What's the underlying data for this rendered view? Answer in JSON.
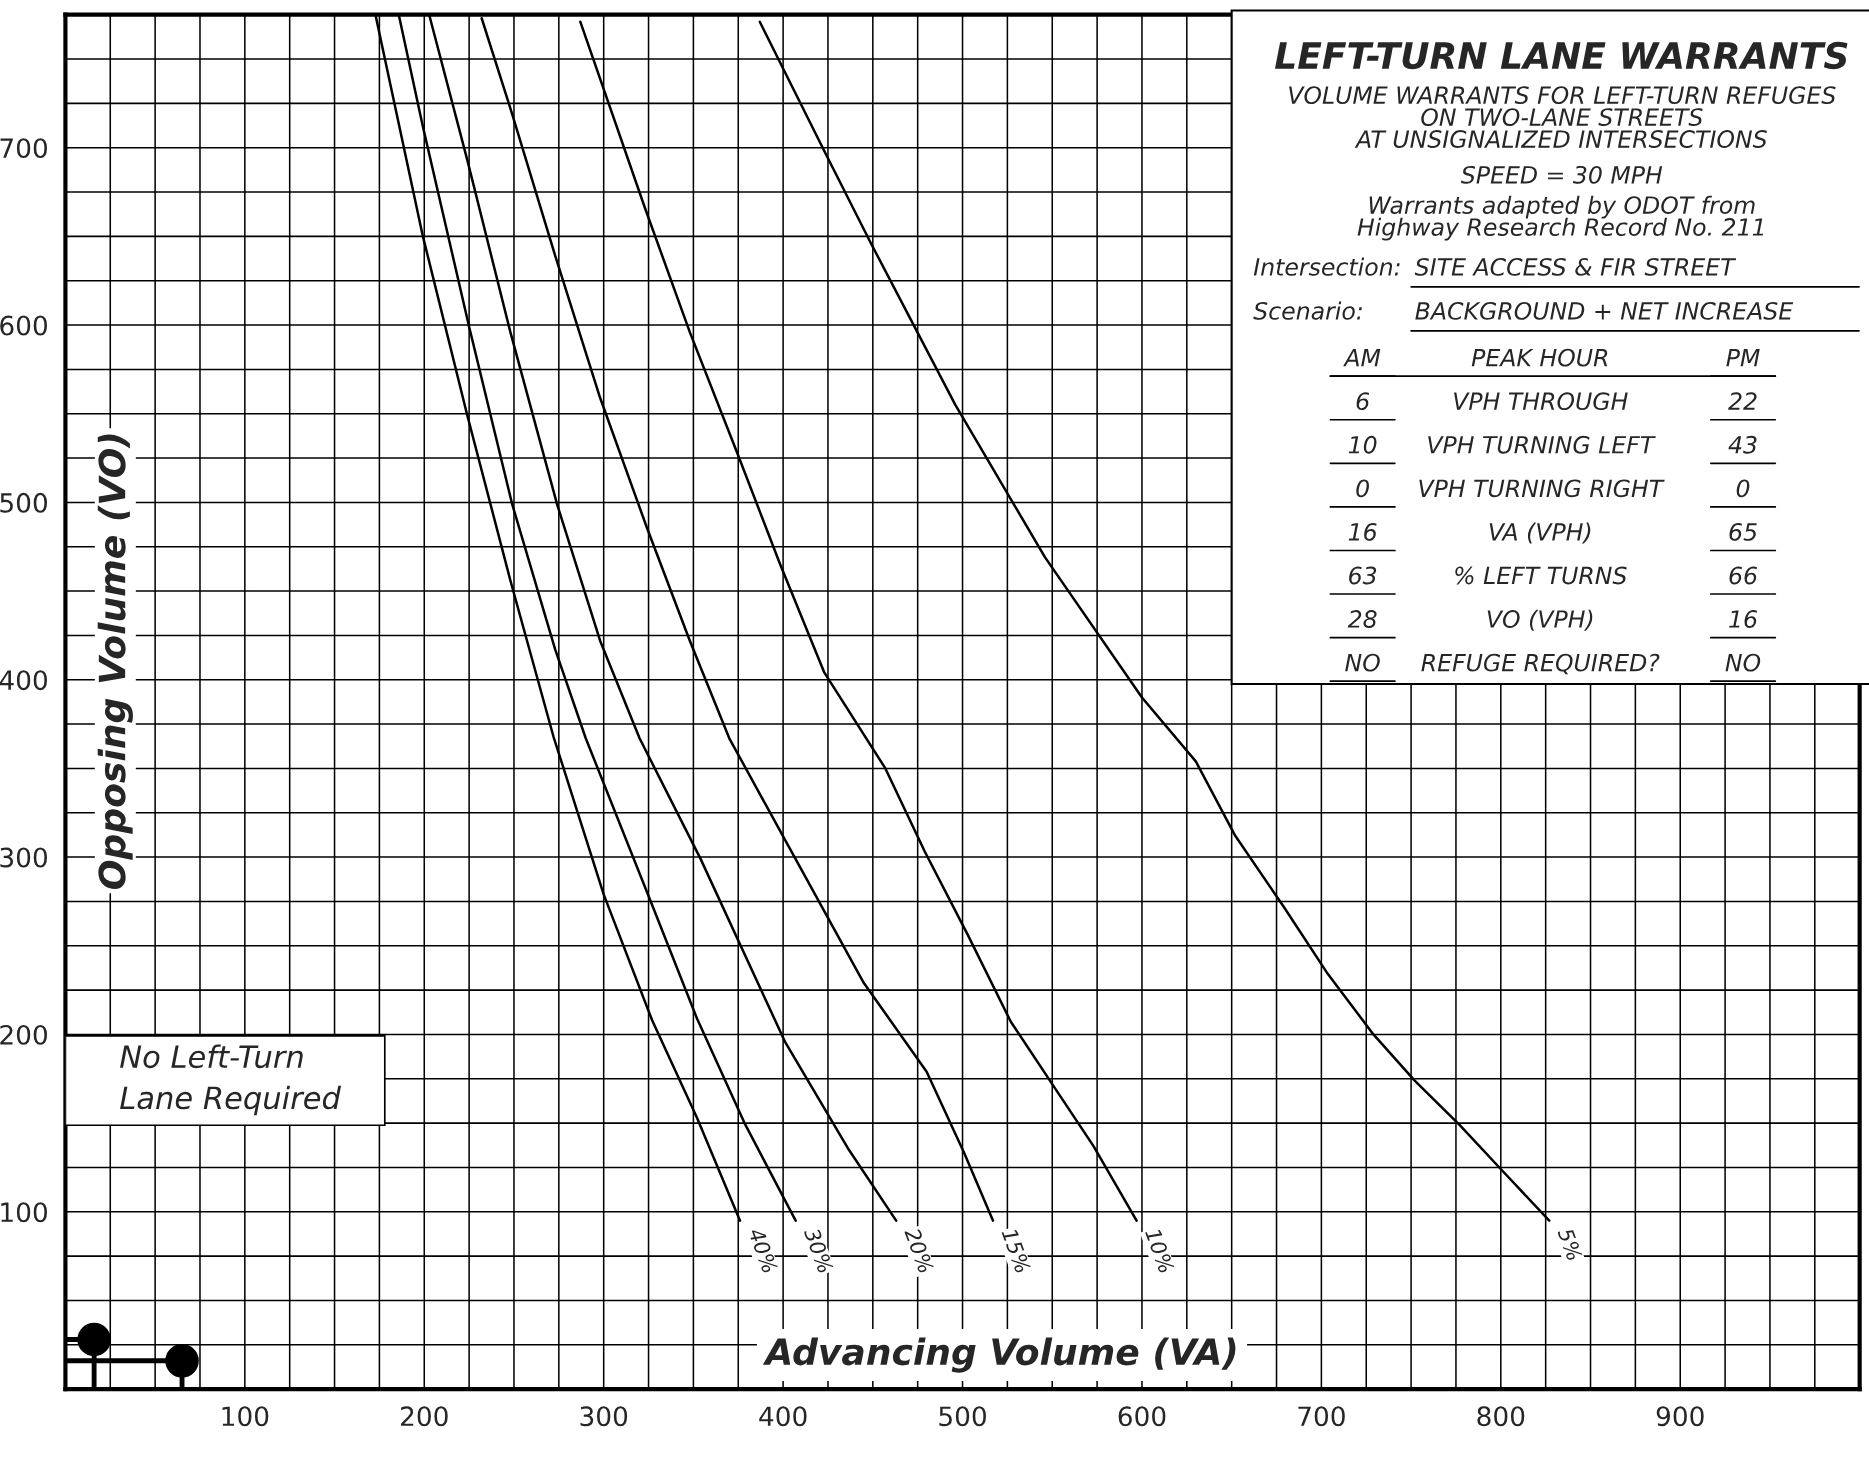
{
  "chart_data": {
    "type": "line",
    "title": "LEFT-TURN LANE WARRANTS",
    "subtitle": "VOLUME WARRANTS FOR LEFT-TURN REFUGES\nON TWO-LANE STREETS\nAT UNSIGNALIZED INTERSECTIONS",
    "xlabel": "Advancing Volume (VA)",
    "ylabel": "Opposing Volume (VO)",
    "xlim": [
      0,
      1000
    ],
    "ylim": [
      0,
      775
    ],
    "xticks": [
      {
        "value": 25,
        "label": null
      },
      {
        "value": 50,
        "label": null
      },
      {
        "value": 75,
        "label": null
      },
      100,
      {
        "value": 125,
        "label": null
      },
      {
        "value": 150,
        "label": null
      },
      {
        "value": 175,
        "label": null
      },
      200,
      {
        "value": 225,
        "label": null
      },
      {
        "value": 250,
        "label": null
      },
      {
        "value": 275,
        "label": null
      },
      300,
      {
        "value": 325,
        "label": null
      },
      {
        "value": 350,
        "label": null
      },
      {
        "value": 375,
        "label": null
      },
      400,
      {
        "value": 425,
        "label": null
      },
      {
        "value": 450,
        "label": null
      },
      {
        "value": 475,
        "label": null
      },
      500,
      {
        "value": 525,
        "label": null
      },
      {
        "value": 550,
        "label": null
      },
      {
        "value": 575,
        "label": null
      },
      600,
      {
        "value": 625,
        "label": null
      },
      {
        "value": 650,
        "label": null
      },
      {
        "value": 675,
        "label": null
      },
      700,
      {
        "value": 725,
        "label": null
      },
      {
        "value": 750,
        "label": null
      },
      {
        "value": 775,
        "label": null
      },
      800,
      {
        "value": 825,
        "label": null
      },
      {
        "value": 850,
        "label": null
      },
      {
        "value": 875,
        "label": null
      },
      900,
      {
        "value": 925,
        "label": null
      },
      {
        "value": 950,
        "label": null
      },
      {
        "value": 975,
        "label": null
      }
    ],
    "yticks": [
      {
        "value": 25,
        "label": null
      },
      {
        "value": 50,
        "label": null
      },
      {
        "value": 75,
        "label": null
      },
      100,
      {
        "value": 125,
        "label": null
      },
      {
        "value": 150,
        "label": null
      },
      {
        "value": 175,
        "label": null
      },
      200,
      {
        "value": 225,
        "label": null
      },
      {
        "value": 250,
        "label": null
      },
      {
        "value": 275,
        "label": null
      },
      300,
      {
        "value": 325,
        "label": null
      },
      {
        "value": 350,
        "label": null
      },
      {
        "value": 375,
        "label": null
      },
      400,
      {
        "value": 425,
        "label": null
      },
      {
        "value": 450,
        "label": null
      },
      {
        "value": 475,
        "label": null
      },
      500,
      {
        "value": 525,
        "label": null
      },
      {
        "value": 550,
        "label": null
      },
      {
        "value": 575,
        "label": null
      },
      600,
      {
        "value": 625,
        "label": null
      },
      {
        "value": 650,
        "label": null
      },
      {
        "value": 675,
        "label": null
      },
      700,
      {
        "value": 725,
        "label": null
      },
      {
        "value": 750,
        "label": null
      }
    ],
    "grid": true,
    "legend": false,
    "marker": "none",
    "line_style": "solid",
    "series": [
      {
        "name": "40%",
        "color": "#000000",
        "x": [
          173,
          199,
          224,
          248,
          272,
          300,
          327,
          352,
          376
        ],
        "values": [
          774,
          651,
          549,
          456,
          368,
          279,
          208,
          153,
          95
        ]
      },
      {
        "name": "30%",
        "color": "#000000",
        "x": [
          186,
          199,
          225,
          249,
          273,
          290,
          327,
          352,
          379,
          407
        ],
        "values": [
          774,
          713,
          599,
          499,
          417,
          367,
          273,
          209,
          149,
          95
        ]
      },
      {
        "name": "20%",
        "color": "#000000",
        "x": [
          203,
          224,
          248,
          274,
          298,
          320,
          354,
          401,
          436,
          463
        ],
        "values": [
          774,
          693,
          596,
          499,
          422,
          367,
          299,
          196,
          136,
          95
        ]
      },
      {
        "name": "15%",
        "color": "#000000",
        "x": [
          232,
          249,
          273,
          298,
          324,
          348,
          370,
          402,
          445,
          480,
          501,
          517
        ],
        "values": [
          773,
          719,
          639,
          559,
          486,
          422,
          367,
          308,
          229,
          179,
          133,
          95
        ]
      },
      {
        "name": "10%",
        "color": "#000000",
        "x": [
          287,
          323,
          348,
          374,
          398,
          423,
          457,
          479,
          503,
          527,
          550,
          573,
          597
        ],
        "values": [
          771,
          666,
          596,
          529,
          466,
          404,
          350,
          303,
          256,
          207,
          172,
          137,
          95
        ]
      },
      {
        "name": "5%",
        "color": "#000000",
        "x": [
          387,
          424,
          449,
          496,
          546,
          600,
          630,
          652,
          679,
          703,
          729,
          752,
          777,
          801,
          827
        ],
        "values": [
          771,
          696,
          646,
          555,
          469,
          390,
          354,
          312,
          272,
          235,
          200,
          174,
          149,
          123,
          95
        ]
      },
      {
        "type": "scatter",
        "color": "#000000",
        "marker": "circle",
        "x": [
          16,
          65
        ],
        "values": [
          28,
          16
        ],
        "errors": [
          [
            0,
            28
          ],
          [
            0,
            16
          ]
        ],
        "xerrors": [
          [
            0,
            16
          ],
          [
            0,
            65
          ]
        ]
      }
    ],
    "annotations": [
      "SPEED = 30 MPH",
      "Warrants adapted by ODOT from\nHighway Research Record No. 211",
      "Intersection:",
      "SITE ACCESS & FIR STREET",
      "Scenario:",
      "BACKGROUND + NET INCREASE",
      "AM",
      "PEAK HOUR",
      "PM",
      "6",
      "VPH THROUGH",
      "22",
      "10",
      "VPH TURNING LEFT",
      "43",
      "0",
      "VPH TURNING RIGHT",
      "0",
      "16",
      "VA (VPH)",
      "65",
      "63",
      "% LEFT TURNS",
      "66",
      "28",
      "VO (VPH)",
      "16",
      "NO",
      "REFUGE REQUIRED?",
      "NO",
      "No Left-Turn\nLane Required"
    ]
  }
}
